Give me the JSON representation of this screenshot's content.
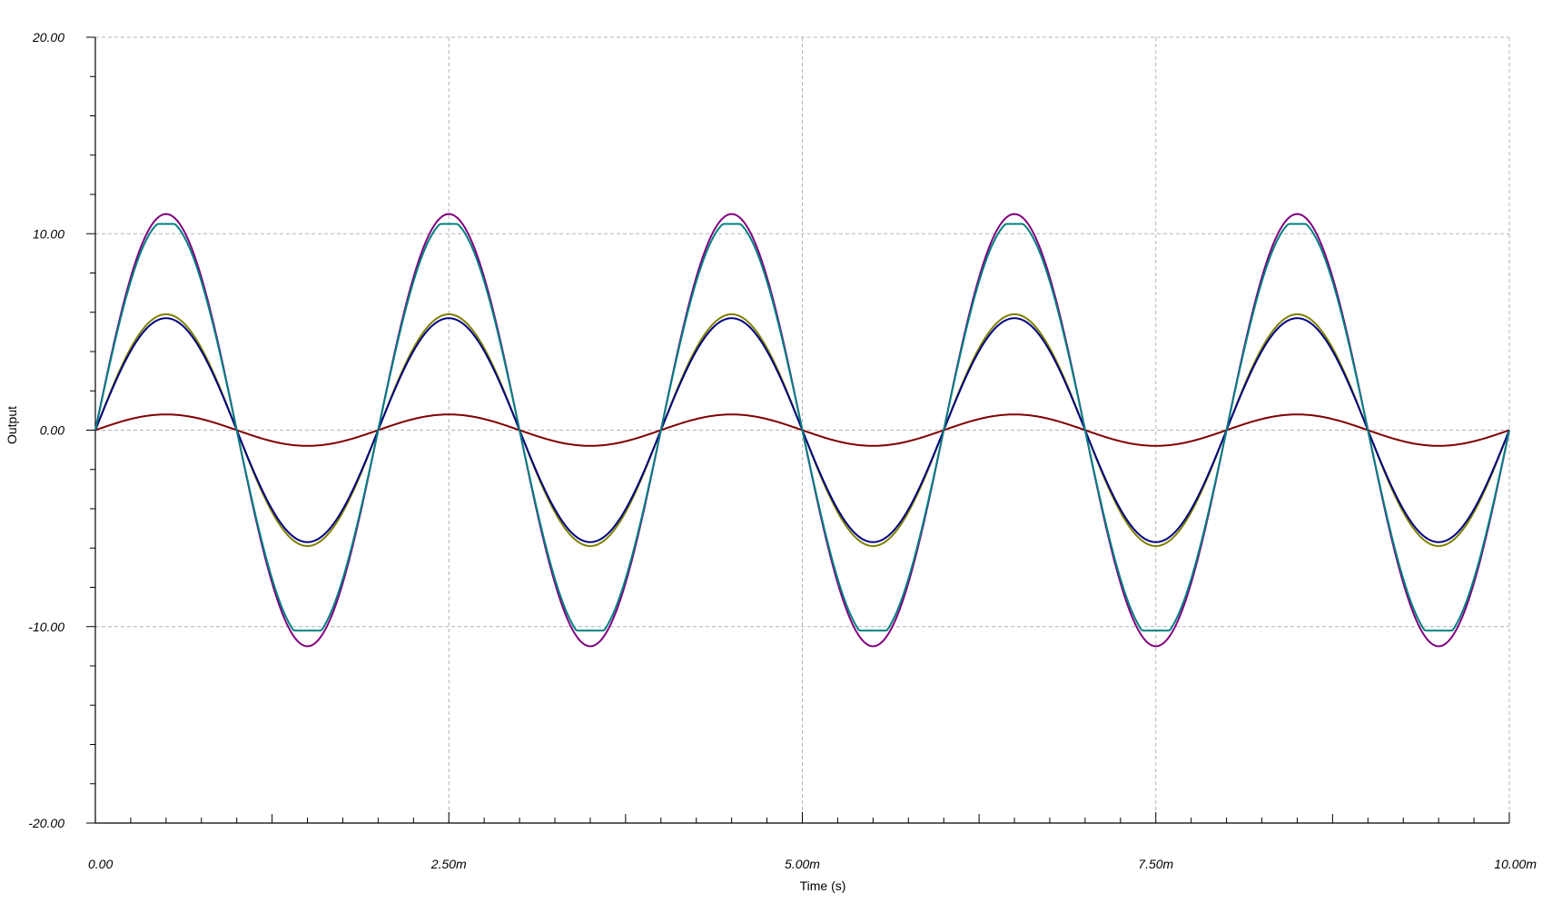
{
  "chart_data": {
    "type": "line",
    "xlabel": "Time (s)",
    "ylabel": "Output",
    "xlim": [
      0,
      0.01
    ],
    "ylim": [
      -20,
      20
    ],
    "x_ticks": [
      {
        "value": 0,
        "label": "0.00"
      },
      {
        "value": 0.0025,
        "label": "2.50m"
      },
      {
        "value": 0.005,
        "label": "5.00m"
      },
      {
        "value": 0.0075,
        "label": "7.50m"
      },
      {
        "value": 0.01,
        "label": "10.00m"
      }
    ],
    "y_ticks": [
      {
        "value": 20,
        "label": "20.00"
      },
      {
        "value": 10,
        "label": "10.00"
      },
      {
        "value": 0,
        "label": "0.00"
      },
      {
        "value": -10,
        "label": "-10.00"
      },
      {
        "value": -20,
        "label": "-20.00"
      }
    ],
    "grid": true,
    "frequency_hz": 500,
    "colors": {
      "grid": "#b4b4b4",
      "axis": "#000000"
    },
    "series": [
      {
        "color": "#800000",
        "amplitude": 0.8,
        "clip": null
      },
      {
        "color": "#808000",
        "amplitude": 5.9,
        "clip": null
      },
      {
        "color": "#000080",
        "amplitude": 5.7,
        "clip": null
      },
      {
        "color": "#800080",
        "amplitude": 11.0,
        "clip": null
      },
      {
        "color": "#008080",
        "amplitude": 10.7,
        "clip": [
          -10.2,
          10.5
        ]
      }
    ]
  }
}
